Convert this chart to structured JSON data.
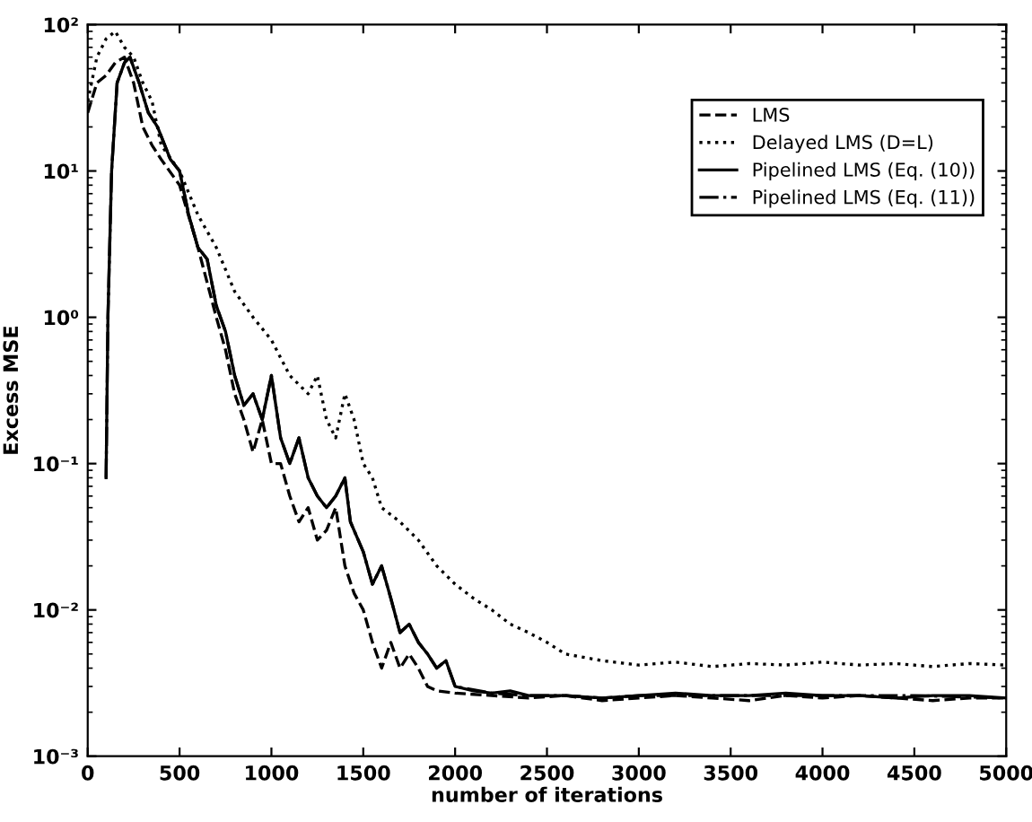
{
  "chart_data": {
    "type": "line",
    "xlabel": "number of iterations",
    "ylabel": "Excess MSE",
    "log": "y",
    "xlim": [
      0,
      5000
    ],
    "xticks": [
      0,
      500,
      1000,
      1500,
      2000,
      2500,
      3000,
      3500,
      4000,
      4500,
      5000
    ],
    "ylim": [
      0.001,
      100
    ],
    "yticks": [
      {
        "value": 0.001,
        "label": "10⁻³"
      },
      {
        "value": 0.01,
        "label": "10⁻²"
      },
      {
        "value": 0.1,
        "label": "10⁻¹"
      },
      {
        "value": 1,
        "label": "10⁰"
      },
      {
        "value": 10,
        "label": "10¹"
      },
      {
        "value": 100,
        "label": "10²"
      }
    ],
    "grid": false,
    "legend": "top right",
    "series": [
      {
        "name": "LMS",
        "color": "#000000",
        "line_style": "dashed",
        "x": [
          0,
          50,
          100,
          150,
          200,
          250,
          300,
          350,
          400,
          500,
          600,
          700,
          750,
          800,
          850,
          900,
          950,
          1000,
          1050,
          1100,
          1150,
          1200,
          1250,
          1300,
          1350,
          1400,
          1450,
          1500,
          1550,
          1600,
          1650,
          1700,
          1750,
          1800,
          1850,
          1900,
          2000,
          2200,
          2400,
          2600,
          2800,
          3000,
          3200,
          3400,
          3600,
          3800,
          4000,
          4200,
          4400,
          4600,
          4800,
          5000
        ],
        "values": [
          25,
          40,
          45,
          55,
          60,
          40,
          20,
          15,
          12,
          8,
          3,
          1.0,
          0.6,
          0.3,
          0.2,
          0.12,
          0.2,
          0.1,
          0.1,
          0.06,
          0.04,
          0.05,
          0.03,
          0.035,
          0.05,
          0.02,
          0.013,
          0.01,
          0.006,
          0.004,
          0.006,
          0.004,
          0.005,
          0.004,
          0.003,
          0.0028,
          0.0027,
          0.0026,
          0.0025,
          0.0026,
          0.0024,
          0.0025,
          0.0026,
          0.0025,
          0.0024,
          0.0026,
          0.0025,
          0.0026,
          0.0025,
          0.0024,
          0.0025,
          0.0025
        ]
      },
      {
        "name": "Delayed LMS (D=L)",
        "color": "#000000",
        "line_style": "dotted",
        "x": [
          0,
          50,
          100,
          150,
          200,
          250,
          300,
          350,
          400,
          500,
          600,
          700,
          800,
          900,
          1000,
          1100,
          1200,
          1250,
          1300,
          1350,
          1400,
          1450,
          1500,
          1550,
          1600,
          1700,
          1800,
          1900,
          2000,
          2100,
          2200,
          2300,
          2400,
          2500,
          2600,
          2800,
          3000,
          3200,
          3400,
          3600,
          3800,
          4000,
          4200,
          4400,
          4600,
          4800,
          5000
        ],
        "values": [
          30,
          60,
          80,
          90,
          70,
          60,
          40,
          30,
          15,
          10,
          5,
          3,
          1.5,
          1.0,
          0.7,
          0.4,
          0.3,
          0.4,
          0.2,
          0.15,
          0.3,
          0.2,
          0.1,
          0.08,
          0.05,
          0.04,
          0.03,
          0.02,
          0.015,
          0.012,
          0.01,
          0.008,
          0.007,
          0.006,
          0.005,
          0.0045,
          0.0042,
          0.0044,
          0.0041,
          0.0043,
          0.0042,
          0.0044,
          0.0042,
          0.0043,
          0.0041,
          0.0043,
          0.0042
        ]
      },
      {
        "name": "Pipelined LMS (Eq. (10))",
        "color": "#000000",
        "line_style": "solid",
        "x": [
          100,
          110,
          130,
          160,
          200,
          230,
          280,
          330,
          380,
          450,
          500,
          550,
          600,
          650,
          700,
          750,
          800,
          850,
          900,
          950,
          1000,
          1050,
          1100,
          1150,
          1200,
          1250,
          1300,
          1350,
          1400,
          1430,
          1500,
          1550,
          1600,
          1650,
          1700,
          1750,
          1800,
          1850,
          1900,
          1950,
          2000,
          2100,
          2200,
          2300,
          2400,
          2600,
          2800,
          3000,
          3200,
          3400,
          3600,
          3800,
          4000,
          4200,
          4400,
          4600,
          4800,
          5000
        ],
        "values": [
          0.08,
          1,
          10,
          40,
          55,
          60,
          40,
          25,
          20,
          12,
          10,
          5,
          3,
          2.5,
          1.2,
          0.8,
          0.4,
          0.25,
          0.3,
          0.2,
          0.4,
          0.15,
          0.1,
          0.15,
          0.08,
          0.06,
          0.05,
          0.06,
          0.08,
          0.04,
          0.025,
          0.015,
          0.02,
          0.012,
          0.007,
          0.008,
          0.006,
          0.005,
          0.004,
          0.0045,
          0.003,
          0.0028,
          0.0027,
          0.0028,
          0.0026,
          0.0026,
          0.0025,
          0.0026,
          0.0027,
          0.0026,
          0.0026,
          0.0027,
          0.0026,
          0.0026,
          0.0025,
          0.0026,
          0.0026,
          0.0025
        ]
      },
      {
        "name": "Pipelined LMS (Eq. (11))",
        "color": "#000000",
        "line_style": "dashdot",
        "x": [
          100,
          110,
          130,
          160,
          200,
          230,
          280,
          330,
          380,
          450,
          500,
          550,
          600,
          650,
          700,
          750,
          800,
          850,
          900,
          950,
          1000,
          1050,
          1100,
          1150,
          1200,
          1250,
          1300,
          1350,
          1400,
          1430,
          1500,
          1550,
          1600,
          1650,
          1700,
          1750,
          1800,
          1850,
          1900,
          1950,
          2000,
          2200,
          2400,
          2600,
          2800,
          3000,
          3500,
          4000,
          4500,
          5000
        ],
        "values": [
          0.08,
          1,
          10,
          40,
          55,
          60,
          40,
          25,
          20,
          12,
          10,
          5,
          3,
          2.5,
          1.2,
          0.8,
          0.4,
          0.25,
          0.3,
          0.2,
          0.4,
          0.15,
          0.1,
          0.15,
          0.08,
          0.06,
          0.05,
          0.06,
          0.08,
          0.04,
          0.025,
          0.015,
          0.02,
          0.012,
          0.007,
          0.008,
          0.006,
          0.005,
          0.004,
          0.0045,
          0.003,
          0.0027,
          0.0026,
          0.0026,
          0.0025,
          0.0026,
          0.0026,
          0.0026,
          0.0026,
          0.0025
        ]
      }
    ]
  }
}
